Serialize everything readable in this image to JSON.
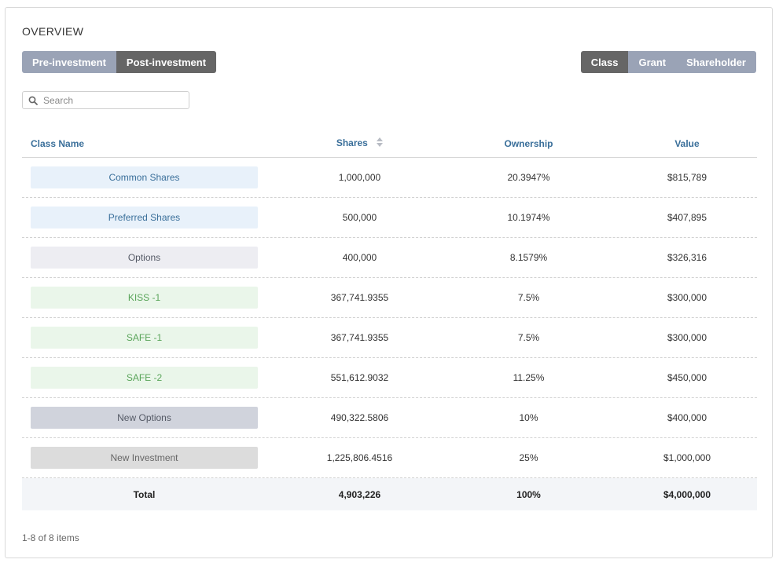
{
  "overview": {
    "title": "OVERVIEW",
    "view_toggle": [
      {
        "label": "Pre-investment",
        "active": false
      },
      {
        "label": "Post-investment",
        "active": true
      }
    ],
    "group_toggle": [
      {
        "label": "Class",
        "active": true
      },
      {
        "label": "Grant",
        "active": false
      },
      {
        "label": "Shareholder",
        "active": false
      }
    ],
    "search": {
      "placeholder": "Search",
      "value": ""
    },
    "table": {
      "headers": {
        "class_name": "Class Name",
        "shares": "Shares",
        "ownership": "Ownership",
        "value": "Value"
      },
      "rows": [
        {
          "class_name": "Common Shares",
          "shares": "1,000,000",
          "ownership": "20.3947%",
          "value": "$815,789",
          "pill_bg": "#e8f1fa",
          "pill_fg": "#3a6f9a"
        },
        {
          "class_name": "Preferred Shares",
          "shares": "500,000",
          "ownership": "10.1974%",
          "value": "$407,895",
          "pill_bg": "#e8f1fa",
          "pill_fg": "#3a6f9a"
        },
        {
          "class_name": "Options",
          "shares": "400,000",
          "ownership": "8.1579%",
          "value": "$326,316",
          "pill_bg": "#ededf2",
          "pill_fg": "#555a66"
        },
        {
          "class_name": "KISS -1",
          "shares": "367,741.9355",
          "ownership": "7.5%",
          "value": "$300,000",
          "pill_bg": "#eaf6ea",
          "pill_fg": "#5aa55a"
        },
        {
          "class_name": "SAFE -1",
          "shares": "367,741.9355",
          "ownership": "7.5%",
          "value": "$300,000",
          "pill_bg": "#eaf6ea",
          "pill_fg": "#5aa55a"
        },
        {
          "class_name": "SAFE -2",
          "shares": "551,612.9032",
          "ownership": "11.25%",
          "value": "$450,000",
          "pill_bg": "#eaf6ea",
          "pill_fg": "#5aa55a"
        },
        {
          "class_name": "New Options",
          "shares": "490,322.5806",
          "ownership": "10%",
          "value": "$400,000",
          "pill_bg": "#d0d3dc",
          "pill_fg": "#555a66"
        },
        {
          "class_name": "New Investment",
          "shares": "1,225,806.4516",
          "ownership": "25%",
          "value": "$1,000,000",
          "pill_bg": "#dcdcdc",
          "pill_fg": "#666666"
        }
      ],
      "total": {
        "label": "Total",
        "shares": "4,903,226",
        "ownership": "100%",
        "value": "$4,000,000"
      }
    },
    "pagination": "1-8 of 8 items"
  }
}
